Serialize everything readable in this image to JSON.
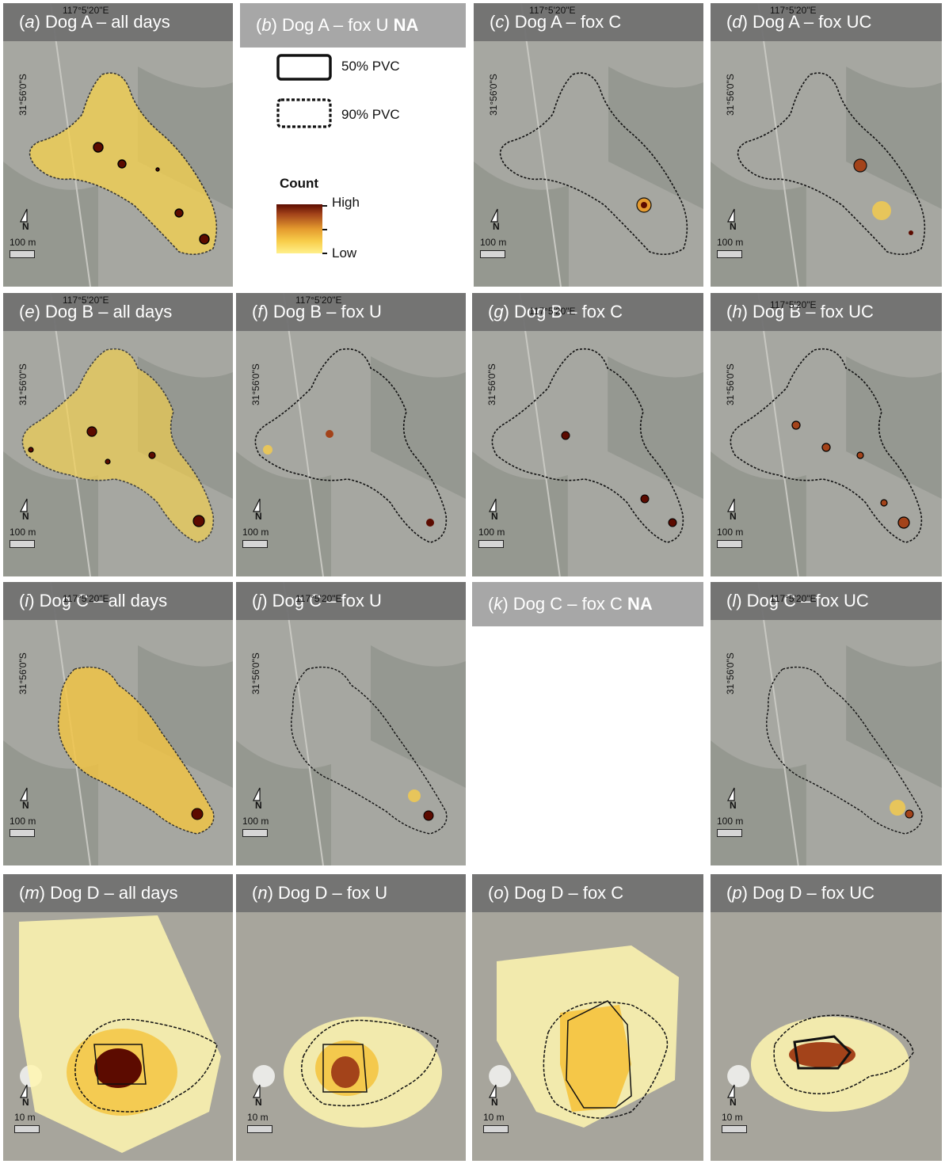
{
  "panels": [
    {
      "letter": "a",
      "title": " Dog A – all days",
      "na": "",
      "lon": "117°5'20\"E",
      "lat": "31°56'0\"S",
      "scale": "100 m"
    },
    {
      "letter": "b",
      "title": " Dog A – fox U ",
      "na": "NA",
      "lon": "",
      "lat": "",
      "scale": ""
    },
    {
      "letter": "c",
      "title": " Dog A – fox C",
      "na": "",
      "lon": "117°5'20\"E",
      "lat": "31°56'0\"S",
      "scale": "100 m"
    },
    {
      "letter": "d",
      "title": " Dog A – fox UC",
      "na": "",
      "lon": "117°5'20\"E",
      "lat": "31°56'0\"S",
      "scale": "100 m"
    },
    {
      "letter": "e",
      "title": " Dog B – all days",
      "na": "",
      "lon": "117°5'20\"E",
      "lat": "31°56'0\"S",
      "scale": "100 m"
    },
    {
      "letter": "f",
      "title": " Dog B – fox U",
      "na": "",
      "lon": "117°5'20\"E",
      "lat": "31°56'0\"S",
      "scale": "100 m"
    },
    {
      "letter": "g",
      "title": " Dog B – fox C",
      "na": "",
      "lon": "117°5'20\"E",
      "lat": "31°56'0\"S",
      "scale": "100 m"
    },
    {
      "letter": "h",
      "title": " Dog B – fox UC",
      "na": "",
      "lon": "117°5'20\"E",
      "lat": "31°56'0\"S",
      "scale": "100 m"
    },
    {
      "letter": "i",
      "title": " Dog C – all days",
      "na": "",
      "lon": "117°5'20\"E",
      "lat": "31°56'0\"S",
      "scale": "100 m"
    },
    {
      "letter": "j",
      "title": " Dog C – fox U",
      "na": "",
      "lon": "117°5'20\"E",
      "lat": "31°56'0\"S",
      "scale": "100 m"
    },
    {
      "letter": "k",
      "title": " Dog C – fox C ",
      "na": "NA",
      "lon": "",
      "lat": "",
      "scale": ""
    },
    {
      "letter": "l",
      "title": " Dog C – fox UC",
      "na": "",
      "lon": "117°5'20\"E",
      "lat": "31°56'0\"S",
      "scale": "100 m"
    },
    {
      "letter": "m",
      "title": " Dog D – all days",
      "na": "",
      "lon": "",
      "lat": "",
      "scale": "10 m"
    },
    {
      "letter": "n",
      "title": " Dog D – fox U",
      "na": "",
      "lon": "",
      "lat": "",
      "scale": "10 m"
    },
    {
      "letter": "o",
      "title": " Dog D – fox C",
      "na": "",
      "lon": "",
      "lat": "",
      "scale": "10 m"
    },
    {
      "letter": "p",
      "title": " Dog D – fox UC",
      "na": "",
      "lon": "",
      "lat": "",
      "scale": "10 m"
    }
  ],
  "north_label": "N",
  "legend": {
    "pvc50": "50% PVC",
    "pvc90": "90% PVC",
    "count_title": "Count",
    "high": "High",
    "low": "Low"
  },
  "colors": {
    "high": "#5c0b00",
    "mid": "#e49a2e",
    "low": "#fff08a",
    "header": "#707070"
  }
}
